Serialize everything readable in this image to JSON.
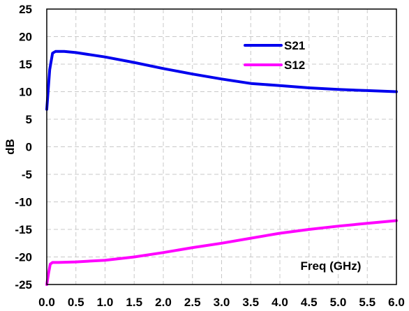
{
  "chart_data": {
    "type": "line",
    "title": "",
    "xlabel": "Freq (GHz)",
    "ylabel": "dB",
    "xlim": [
      0.0,
      6.0
    ],
    "ylim": [
      -25,
      25
    ],
    "x_ticks": [
      "0.0",
      "0.5",
      "1.0",
      "1.5",
      "2.0",
      "2.5",
      "3.0",
      "3.5",
      "4.0",
      "4.5",
      "5.0",
      "5.5",
      "6.0"
    ],
    "y_ticks": [
      "25",
      "20",
      "15",
      "10",
      "5",
      "0",
      "-5",
      "-10",
      "-15",
      "-20",
      "-25"
    ],
    "grid": true,
    "legend_position": "top-right",
    "series": [
      {
        "name": "S21",
        "color": "#0000ee",
        "x": [
          0.0,
          0.05,
          0.1,
          0.15,
          0.3,
          0.5,
          1.0,
          1.5,
          2.0,
          2.5,
          3.0,
          3.5,
          4.0,
          4.5,
          5.0,
          5.5,
          6.0
        ],
        "y": [
          6.8,
          14.0,
          17.0,
          17.3,
          17.3,
          17.1,
          16.3,
          15.3,
          14.2,
          13.2,
          12.3,
          11.5,
          11.1,
          10.7,
          10.4,
          10.2,
          10.0
        ]
      },
      {
        "name": "S12",
        "color": "#ff00ff",
        "x": [
          0.0,
          0.03,
          0.06,
          0.1,
          0.2,
          0.5,
          1.0,
          1.5,
          2.0,
          2.5,
          3.0,
          3.5,
          4.0,
          4.5,
          5.0,
          5.5,
          6.0
        ],
        "y": [
          -25.0,
          -23.0,
          -21.3,
          -21.0,
          -21.0,
          -20.9,
          -20.6,
          -20.0,
          -19.2,
          -18.3,
          -17.5,
          -16.6,
          -15.7,
          -15.0,
          -14.4,
          -13.9,
          -13.4
        ]
      }
    ]
  }
}
